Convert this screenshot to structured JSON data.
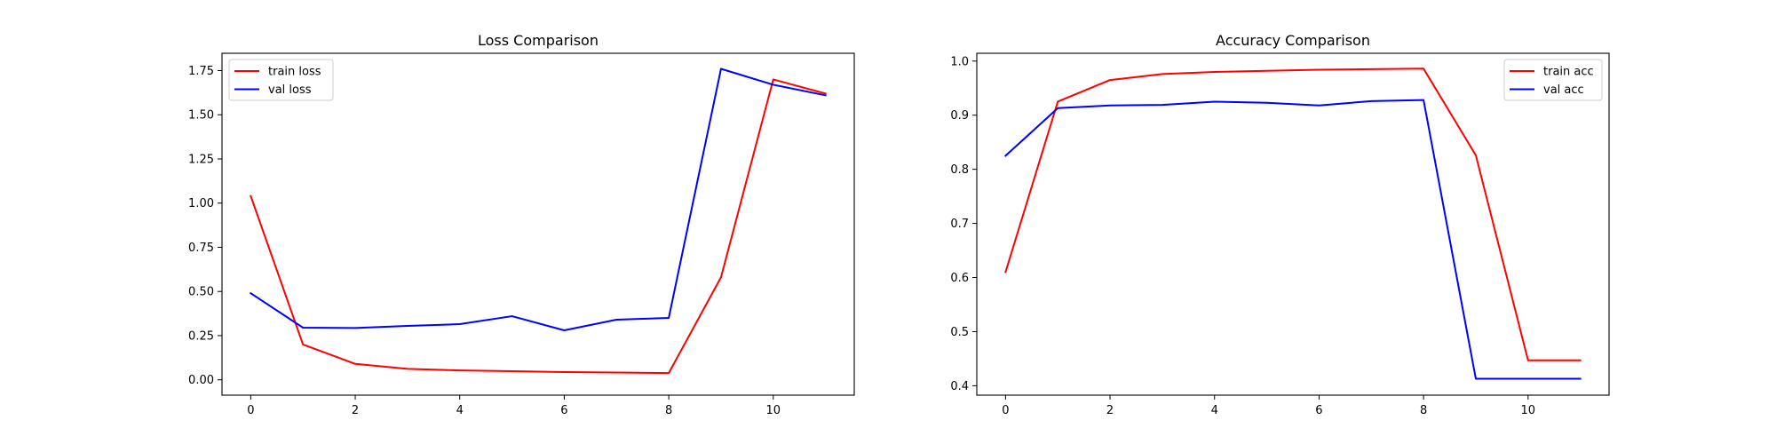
{
  "chart_data": [
    {
      "type": "line",
      "title": "Loss Comparison",
      "xlabel": "",
      "ylabel": "",
      "x": [
        0,
        1,
        2,
        3,
        4,
        5,
        6,
        7,
        8,
        9,
        10,
        11
      ],
      "xlim": [
        -0.55,
        11.55
      ],
      "ylim": [
        -0.087,
        1.848
      ],
      "xticks": [
        0,
        2,
        4,
        6,
        8,
        10
      ],
      "yticks": [
        0.0,
        0.25,
        0.5,
        0.75,
        1.0,
        1.25,
        1.5,
        1.75
      ],
      "ytick_labels": [
        "0.00",
        "0.25",
        "0.50",
        "0.75",
        "1.00",
        "1.25",
        "1.50",
        "1.75"
      ],
      "grid": false,
      "legend_position": "upper left",
      "series": [
        {
          "name": "train loss",
          "color": "#ff0000",
          "values": [
            1.04,
            0.2,
            0.09,
            0.062,
            0.053,
            0.049,
            0.044,
            0.041,
            0.038,
            0.58,
            1.7,
            1.62
          ]
        },
        {
          "name": "val loss",
          "color": "#0000ff",
          "values": [
            0.49,
            0.295,
            0.293,
            0.305,
            0.315,
            0.36,
            0.28,
            0.34,
            0.35,
            1.76,
            1.67,
            1.61
          ]
        }
      ]
    },
    {
      "type": "line",
      "title": "Accuracy Comparison",
      "xlabel": "",
      "ylabel": "",
      "x": [
        0,
        1,
        2,
        3,
        4,
        5,
        6,
        7,
        8,
        9,
        10,
        11
      ],
      "xlim": [
        -0.55,
        11.55
      ],
      "ylim": [
        0.3826,
        1.0144
      ],
      "xticks": [
        0,
        2,
        4,
        6,
        8,
        10
      ],
      "yticks": [
        0.4,
        0.5,
        0.6,
        0.7,
        0.8,
        0.9,
        1.0
      ],
      "ytick_labels": [
        "0.4",
        "0.5",
        "0.6",
        "0.7",
        "0.8",
        "0.9",
        "1.0"
      ],
      "grid": false,
      "legend_position": "upper right",
      "series": [
        {
          "name": "train acc",
          "color": "#ff0000",
          "values": [
            0.61,
            0.925,
            0.965,
            0.976,
            0.98,
            0.982,
            0.984,
            0.985,
            0.986,
            0.826,
            0.447,
            0.447
          ]
        },
        {
          "name": "val acc",
          "color": "#0000ff",
          "values": [
            0.825,
            0.913,
            0.918,
            0.919,
            0.925,
            0.923,
            0.918,
            0.926,
            0.928,
            0.413,
            0.413,
            0.413
          ]
        }
      ]
    }
  ]
}
